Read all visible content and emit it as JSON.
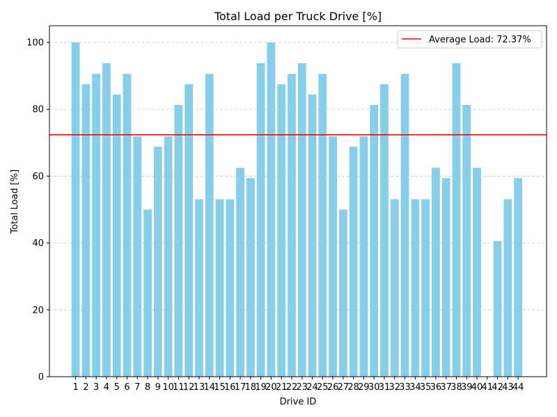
{
  "chart_data": {
    "type": "bar",
    "title": "Total Load per Truck Drive [%]",
    "xlabel": "Drive ID",
    "ylabel": "Total Load [%]",
    "ylim": [
      0,
      105
    ],
    "yticks": [
      0,
      20,
      40,
      60,
      80,
      100
    ],
    "grid": "y-dashed",
    "legend_position": "top-right",
    "colors": {
      "bar": "#87CEEB",
      "average_line": "#FF0000",
      "grid": "#c8c8c8"
    },
    "categories": [
      "1",
      "2",
      "3",
      "4",
      "5",
      "6",
      "7",
      "8",
      "9",
      "10",
      "11",
      "12",
      "13",
      "14",
      "15",
      "16",
      "17",
      "18",
      "19",
      "20",
      "21",
      "22",
      "23",
      "24",
      "25",
      "26",
      "27",
      "28",
      "29",
      "30",
      "31",
      "32",
      "33",
      "34",
      "35",
      "36",
      "37",
      "38",
      "39",
      "40",
      "41",
      "42",
      "43",
      "44"
    ],
    "values": [
      100,
      87.5,
      90.6,
      93.8,
      84.4,
      90.6,
      71.9,
      50.0,
      68.8,
      71.9,
      81.3,
      87.5,
      53.1,
      90.6,
      53.1,
      53.1,
      62.5,
      59.4,
      93.8,
      100,
      87.5,
      90.6,
      93.8,
      84.4,
      90.6,
      71.9,
      50.0,
      68.8,
      71.9,
      81.3,
      87.5,
      53.1,
      90.6,
      53.1,
      53.1,
      62.5,
      59.4,
      93.8,
      81.3,
      62.5,
      0,
      40.6,
      53.1,
      59.4
    ],
    "average": 72.37,
    "legend_label": "Average Load: 72.37%"
  }
}
